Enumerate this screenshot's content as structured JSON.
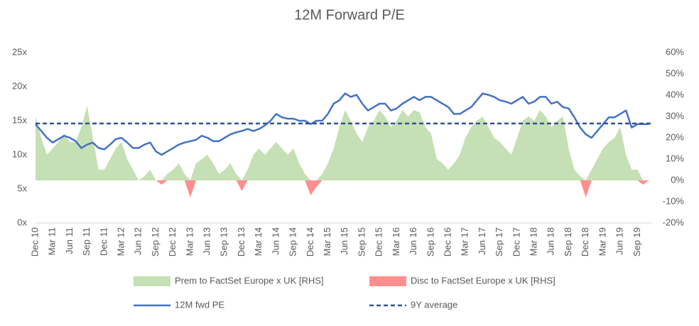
{
  "chart_data": {
    "type": "line",
    "title": "12M Forward P/E",
    "categories": [
      "Dec 10",
      null,
      null,
      "Mar 11",
      null,
      null,
      "Jun 11",
      null,
      null,
      "Sep 11",
      null,
      null,
      "Dec 11",
      null,
      null,
      "Mar 12",
      null,
      null,
      "Jun 12",
      null,
      null,
      "Sep 12",
      null,
      null,
      "Dec 12",
      null,
      null,
      "Mar 13",
      null,
      null,
      "Jun 13",
      null,
      null,
      "Sep 13",
      null,
      null,
      "Dec 13",
      null,
      null,
      "Mar 14",
      null,
      null,
      "Jun 14",
      null,
      null,
      "Sep 14",
      null,
      null,
      "Dec 14",
      null,
      null,
      "Mar 15",
      null,
      null,
      "Jun 15",
      null,
      null,
      "Sep 15",
      null,
      null,
      "Dec 15",
      null,
      null,
      "Mar 16",
      null,
      null,
      "Jun 16",
      null,
      null,
      "Sep 16",
      null,
      null,
      "Dec 16",
      null,
      null,
      "Mar 17",
      null,
      null,
      "Jun 17",
      null,
      null,
      "Sep 17",
      null,
      null,
      "Dec 17",
      null,
      null,
      "Mar 18",
      null,
      null,
      "Jun 18",
      null,
      null,
      "Sep 18",
      null,
      null,
      "Dec 18",
      null,
      null,
      "Mar 19",
      null,
      null,
      "Jun 19",
      null,
      null,
      "Sep 19",
      null,
      null
    ],
    "series": [
      {
        "name": "Prem to FactSet Europe x UK [RHS]",
        "type": "area",
        "axis": "y2",
        "color": "#c5e0b4",
        "values": [
          30,
          20,
          12,
          15,
          18,
          22,
          18,
          18,
          25,
          35,
          20,
          5,
          5,
          10,
          15,
          18,
          10,
          5,
          0,
          2,
          5,
          0,
          0,
          3,
          5,
          8,
          3,
          0,
          8,
          10,
          12,
          8,
          3,
          5,
          8,
          3,
          0,
          5,
          12,
          15,
          12,
          15,
          18,
          15,
          12,
          15,
          8,
          3,
          0,
          0,
          3,
          8,
          15,
          25,
          33,
          28,
          22,
          18,
          25,
          28,
          33,
          30,
          25,
          28,
          33,
          30,
          33,
          32,
          25,
          22,
          10,
          8,
          5,
          8,
          12,
          20,
          25,
          28,
          30,
          25,
          20,
          18,
          15,
          12,
          20,
          28,
          30,
          28,
          33,
          30,
          25,
          28,
          30,
          15,
          5,
          2,
          0,
          5,
          10,
          15,
          18,
          20,
          25,
          12,
          5,
          5,
          0,
          0
        ]
      },
      {
        "name": "Disc to FactSet Europe x UK [RHS]",
        "type": "area",
        "axis": "y2",
        "color": "#ff8f8f",
        "values": [
          0,
          0,
          0,
          0,
          0,
          0,
          0,
          0,
          0,
          0,
          0,
          0,
          0,
          0,
          0,
          0,
          0,
          0,
          0,
          0,
          0,
          0,
          -2,
          0,
          0,
          0,
          0,
          -8,
          0,
          0,
          0,
          0,
          0,
          0,
          0,
          0,
          -5,
          0,
          0,
          0,
          0,
          0,
          0,
          0,
          0,
          0,
          0,
          0,
          -7,
          -3,
          0,
          0,
          0,
          0,
          0,
          0,
          0,
          0,
          0,
          0,
          0,
          0,
          0,
          0,
          0,
          0,
          0,
          0,
          0,
          0,
          0,
          0,
          0,
          0,
          0,
          0,
          0,
          0,
          0,
          0,
          0,
          0,
          0,
          0,
          0,
          0,
          0,
          0,
          0,
          0,
          0,
          0,
          0,
          0,
          0,
          0,
          -8,
          0,
          0,
          0,
          0,
          0,
          0,
          0,
          0,
          0,
          -2,
          0
        ]
      },
      {
        "name": "12M fwd PE",
        "type": "line",
        "color": "#4472c4",
        "values": [
          14.5,
          13.5,
          12.5,
          11.8,
          12.3,
          12.8,
          12.5,
          12.0,
          11.0,
          11.5,
          11.8,
          11.0,
          10.8,
          11.5,
          12.3,
          12.5,
          11.8,
          11.0,
          11.0,
          11.5,
          11.8,
          10.5,
          10.0,
          10.5,
          11.0,
          11.5,
          11.8,
          12.0,
          12.2,
          12.8,
          12.5,
          12.0,
          12.0,
          12.5,
          13.0,
          13.3,
          13.5,
          13.8,
          13.5,
          13.8,
          14.3,
          15.0,
          16.0,
          15.5,
          15.3,
          15.3,
          15.0,
          15.0,
          14.5,
          15.0,
          15.0,
          16.0,
          17.5,
          18.0,
          19.0,
          18.5,
          18.8,
          17.5,
          16.5,
          17.0,
          17.5,
          17.5,
          16.5,
          16.8,
          17.5,
          18.0,
          18.5,
          18.0,
          18.5,
          18.5,
          18.0,
          17.5,
          17.0,
          16.0,
          16.0,
          16.5,
          17.0,
          18.0,
          19.0,
          18.8,
          18.5,
          18.0,
          17.8,
          17.5,
          18.0,
          18.5,
          17.5,
          17.8,
          18.5,
          18.5,
          17.5,
          17.8,
          17.0,
          16.8,
          15.5,
          14.0,
          13.0,
          12.5,
          13.5,
          14.5,
          15.5,
          15.5,
          16.0,
          16.5,
          14.0,
          14.5,
          14.5,
          14.5
        ]
      },
      {
        "name": "9Y average",
        "type": "hline",
        "dashed": true,
        "color": "#2f5597",
        "value": 14.6
      }
    ],
    "ylim": [
      0,
      25
    ],
    "yticks": [
      {
        "value": 0,
        "label": "0x"
      },
      {
        "value": 5,
        "label": "5x"
      },
      {
        "value": 10,
        "label": "10x"
      },
      {
        "value": 15,
        "label": "15x"
      },
      {
        "value": 20,
        "label": "20x"
      },
      {
        "value": 25,
        "label": "25x"
      }
    ],
    "y2lim": [
      -20,
      60
    ],
    "y2ticks": [
      {
        "value": -20,
        "label": "-20%"
      },
      {
        "value": -10,
        "label": "-10%"
      },
      {
        "value": 0,
        "label": "0%"
      },
      {
        "value": 10,
        "label": "10%"
      },
      {
        "value": 20,
        "label": "20%"
      },
      {
        "value": 30,
        "label": "30%"
      },
      {
        "value": 40,
        "label": "40%"
      },
      {
        "value": 50,
        "label": "50%"
      },
      {
        "value": 60,
        "label": "60%"
      }
    ],
    "grid": false
  }
}
